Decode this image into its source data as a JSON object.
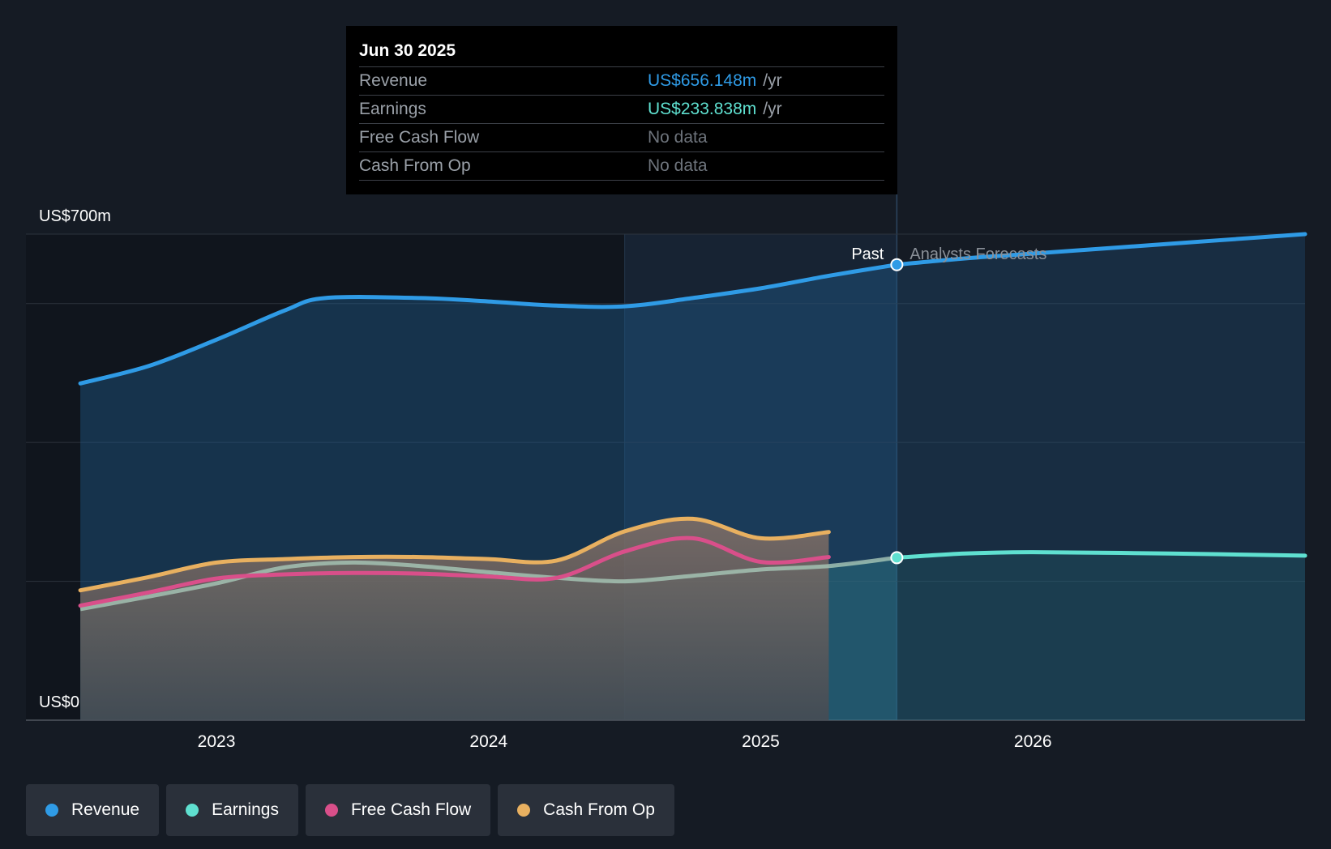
{
  "tooltip": {
    "date": "Jun 30 2025",
    "rows": [
      {
        "label": "Revenue",
        "value": "US$656.148m",
        "unit": "/yr",
        "color": "#2f9be6"
      },
      {
        "label": "Earnings",
        "value": "US$233.838m",
        "unit": "/yr",
        "color": "#5fe0d0"
      },
      {
        "label": "Free Cash Flow",
        "value": "No data",
        "unit": "",
        "color": "#6e747c"
      },
      {
        "label": "Cash From Op",
        "value": "No data",
        "unit": "",
        "color": "#6e747c"
      }
    ]
  },
  "labels": {
    "past": "Past",
    "forecast": "Analysts Forecasts"
  },
  "legend": [
    {
      "label": "Revenue",
      "color": "#2f9be6",
      "icon": "revenue-dot-icon"
    },
    {
      "label": "Earnings",
      "color": "#5fe0d0",
      "icon": "earnings-dot-icon"
    },
    {
      "label": "Free Cash Flow",
      "color": "#d94f8a",
      "icon": "free-cash-flow-dot-icon"
    },
    {
      "label": "Cash From Op",
      "color": "#e8b060",
      "icon": "cash-from-op-dot-icon"
    }
  ],
  "chart_data": {
    "type": "line",
    "ylim": [
      0,
      700
    ],
    "xlim": [
      2022.3,
      2027.0
    ],
    "y_tick_labels": [
      {
        "value": 700,
        "label": "US$700m"
      },
      {
        "value": 0,
        "label": "US$0"
      }
    ],
    "y_gridlines": [
      0,
      200,
      400,
      600,
      700
    ],
    "x_ticks": [
      {
        "value": 2023,
        "label": "2023"
      },
      {
        "value": 2024,
        "label": "2024"
      },
      {
        "value": 2025,
        "label": "2025"
      },
      {
        "value": 2026,
        "label": "2026"
      }
    ],
    "past_end": 2025.5,
    "highlight_start": 2024.5,
    "series": [
      {
        "name": "Revenue",
        "color": "#2f9be6",
        "points": [
          [
            2022.5,
            485
          ],
          [
            2022.75,
            510
          ],
          [
            2023.0,
            548
          ],
          [
            2023.25,
            590
          ],
          [
            2023.4,
            608
          ],
          [
            2023.75,
            608
          ],
          [
            2024.0,
            603
          ],
          [
            2024.25,
            597
          ],
          [
            2024.5,
            596
          ],
          [
            2024.75,
            608
          ],
          [
            2025.0,
            622
          ],
          [
            2025.25,
            640
          ],
          [
            2025.5,
            656
          ]
        ]
      },
      {
        "name": "Revenue forecast",
        "color": "#2f9be6",
        "forecast": true,
        "points": [
          [
            2025.5,
            656
          ],
          [
            2025.75,
            665
          ],
          [
            2026.0,
            672
          ],
          [
            2026.5,
            686
          ],
          [
            2027.0,
            700
          ]
        ]
      },
      {
        "name": "Earnings",
        "color": "#5fe0d0",
        "points": [
          [
            2022.5,
            160
          ],
          [
            2022.75,
            178
          ],
          [
            2023.0,
            197
          ],
          [
            2023.25,
            220
          ],
          [
            2023.5,
            227
          ],
          [
            2023.75,
            222
          ],
          [
            2024.0,
            213
          ],
          [
            2024.25,
            205
          ],
          [
            2024.5,
            200
          ],
          [
            2024.75,
            208
          ],
          [
            2025.0,
            217
          ],
          [
            2025.25,
            222
          ],
          [
            2025.5,
            234
          ]
        ]
      },
      {
        "name": "Earnings forecast",
        "color": "#5fe0d0",
        "forecast": true,
        "points": [
          [
            2025.5,
            234
          ],
          [
            2025.75,
            240
          ],
          [
            2026.0,
            242
          ],
          [
            2026.5,
            240
          ],
          [
            2027.0,
            237
          ]
        ]
      },
      {
        "name": "Free Cash Flow",
        "color": "#d94f8a",
        "points": [
          [
            2022.5,
            165
          ],
          [
            2022.75,
            184
          ],
          [
            2023.0,
            204
          ],
          [
            2023.25,
            210
          ],
          [
            2023.5,
            212
          ],
          [
            2023.75,
            211
          ],
          [
            2024.0,
            207
          ],
          [
            2024.25,
            205
          ],
          [
            2024.5,
            243
          ],
          [
            2024.75,
            262
          ],
          [
            2025.0,
            228
          ],
          [
            2025.25,
            235
          ]
        ]
      },
      {
        "name": "Cash From Op",
        "color": "#e8b060",
        "points": [
          [
            2022.5,
            187
          ],
          [
            2022.75,
            206
          ],
          [
            2023.0,
            227
          ],
          [
            2023.25,
            232
          ],
          [
            2023.5,
            235
          ],
          [
            2023.75,
            235
          ],
          [
            2024.0,
            232
          ],
          [
            2024.25,
            230
          ],
          [
            2024.5,
            272
          ],
          [
            2024.75,
            290
          ],
          [
            2025.0,
            262
          ],
          [
            2025.25,
            271
          ]
        ]
      }
    ]
  }
}
